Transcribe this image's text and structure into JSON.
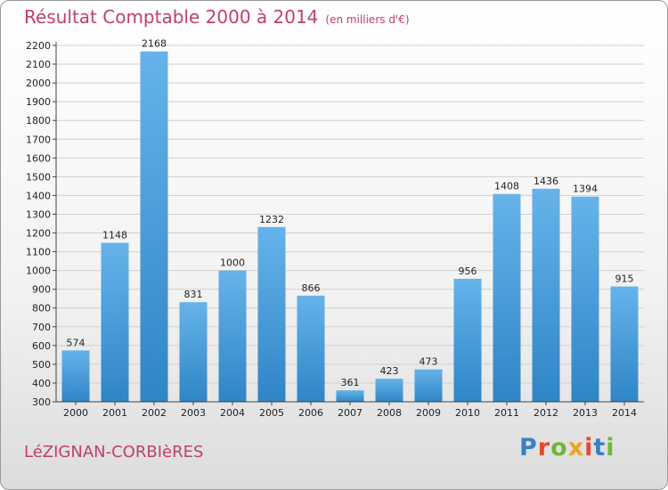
{
  "header": {
    "title": "Résultat Comptable 2000 à 2014",
    "subtitle": "(en milliers d'€)"
  },
  "footer": {
    "town": "LéZIGNAN-CORBIèRES",
    "logo": [
      "P",
      "r",
      "o",
      "x",
      "i",
      "t",
      "i"
    ],
    "logo_colors": [
      "#3b7fc4",
      "#e8482a",
      "#6fb43f",
      "#f0a21f",
      "#e8482a",
      "#3b7fc4",
      "#6fb43f"
    ]
  },
  "colors": {
    "bar_light": "#66b3ea",
    "bar_dark": "#2f85c6",
    "grid": "#d0d0d0",
    "axis": "#444444"
  },
  "chart_data": {
    "type": "bar",
    "title": "Résultat Comptable 2000 à 2014",
    "subtitle": "(en milliers d'€)",
    "xlabel": "",
    "ylabel": "",
    "categories": [
      "2000",
      "2001",
      "2002",
      "2003",
      "2004",
      "2005",
      "2006",
      "2007",
      "2008",
      "2009",
      "2010",
      "2011",
      "2012",
      "2013",
      "2014"
    ],
    "values": [
      574,
      1148,
      2168,
      831,
      1000,
      1232,
      866,
      361,
      423,
      473,
      956,
      1408,
      1436,
      1394,
      915
    ],
    "ylim": [
      300,
      2200
    ],
    "yticks": [
      300,
      400,
      500,
      600,
      700,
      800,
      900,
      1000,
      1100,
      1200,
      1300,
      1400,
      1500,
      1600,
      1700,
      1800,
      1900,
      2000,
      2100,
      2200
    ],
    "grid": true,
    "legend": "none"
  }
}
